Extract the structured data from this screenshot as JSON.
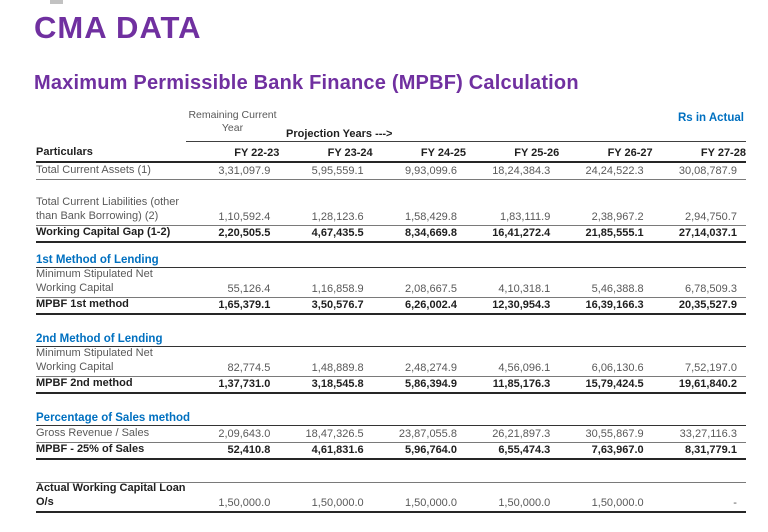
{
  "page": {
    "title": "CMA DATA",
    "subtitle": "Maximum Permissible Bank Finance (MPBF) Calculation",
    "units_note": "Rs in Actual"
  },
  "colors": {
    "accent_purple": "#7030A0",
    "accent_blue": "#0070C0",
    "text_muted": "#595959",
    "text_strong": "#1f1f1f"
  },
  "table": {
    "pre_header": {
      "remaining_line1": "Remaining Current",
      "remaining_line2": "Year",
      "projection_label": "Projection Years --->"
    },
    "columns": [
      "Particulars",
      "FY 22-23",
      "FY 23-24",
      "FY 24-25",
      "FY 25-26",
      "FY 26-27",
      "FY 27-28"
    ],
    "rows": [
      {
        "type": "data",
        "label": "Total Current Assets (1)",
        "values": [
          "3,31,097.9",
          "5,95,559.1",
          "9,93,099.6",
          "18,24,384.3",
          "24,24,522.3",
          "30,08,787.9"
        ],
        "bold": false,
        "lines": 1,
        "border": "thin"
      },
      {
        "type": "spacer",
        "size": "md"
      },
      {
        "type": "data",
        "label": "Total Current Liabilities (other than Bank Borrowing) (2)",
        "values": [
          "1,10,592.4",
          "1,28,123.6",
          "1,58,429.8",
          "1,83,111.9",
          "2,38,967.2",
          "2,94,750.7"
        ],
        "bold": false,
        "lines": 2,
        "border": "thin"
      },
      {
        "type": "data",
        "label": "Working Capital Gap (1-2)",
        "values": [
          "2,20,505.5",
          "4,67,435.5",
          "8,34,669.8",
          "16,41,272.4",
          "21,85,555.1",
          "27,14,037.1"
        ],
        "bold": true,
        "lines": 1,
        "border": "thick"
      },
      {
        "type": "spacer",
        "size": "sm"
      },
      {
        "type": "section",
        "label": "1st Method of Lending"
      },
      {
        "type": "data",
        "label": "Minimum Stipulated Net Working Capital",
        "values": [
          "55,126.4",
          "1,16,858.9",
          "2,08,667.5",
          "4,10,318.1",
          "5,46,388.8",
          "6,78,509.3"
        ],
        "bold": false,
        "lines": 2,
        "border": "thin"
      },
      {
        "type": "data",
        "label": "MPBF 1st method",
        "values": [
          "1,65,379.1",
          "3,50,576.7",
          "6,26,002.4",
          "12,30,954.3",
          "16,39,166.3",
          "20,35,527.9"
        ],
        "bold": true,
        "lines": 1,
        "border": "thick"
      },
      {
        "type": "spacer",
        "size": "md"
      },
      {
        "type": "section",
        "label": "2nd Method of Lending"
      },
      {
        "type": "data",
        "label": "Minimum Stipulated Net Working Capital",
        "values": [
          "82,774.5",
          "1,48,889.8",
          "2,48,274.9",
          "4,56,096.1",
          "6,06,130.6",
          "7,52,197.0"
        ],
        "bold": false,
        "lines": 2,
        "border": "thin"
      },
      {
        "type": "data",
        "label": "MPBF 2nd method",
        "values": [
          "1,37,731.0",
          "3,18,545.8",
          "5,86,394.9",
          "11,85,176.3",
          "15,79,424.5",
          "19,61,840.2"
        ],
        "bold": true,
        "lines": 1,
        "border": "thick"
      },
      {
        "type": "spacer",
        "size": "md"
      },
      {
        "type": "section",
        "label": "Percentage of Sales method"
      },
      {
        "type": "data",
        "label": "Gross Revenue / Sales",
        "values": [
          "2,09,643.0",
          "18,47,326.5",
          "23,87,055.8",
          "26,21,897.3",
          "30,55,867.9",
          "33,27,116.3"
        ],
        "bold": false,
        "lines": 1,
        "border": "thin"
      },
      {
        "type": "data",
        "label": "MPBF - 25% of Sales",
        "values": [
          "52,410.8",
          "4,61,831.6",
          "5,96,764.0",
          "6,55,474.3",
          "7,63,967.0",
          "8,31,779.1"
        ],
        "bold": true,
        "lines": 1,
        "border": "thick"
      },
      {
        "type": "spacer",
        "size": "lg",
        "border": "thin"
      },
      {
        "type": "data",
        "label": "Actual Working Capital Loan O/s",
        "values": [
          "1,50,000.0",
          "1,50,000.0",
          "1,50,000.0",
          "1,50,000.0",
          "1,50,000.0",
          "-"
        ],
        "bold": false,
        "bold_label": true,
        "lines": 2,
        "border": "thick"
      }
    ]
  }
}
